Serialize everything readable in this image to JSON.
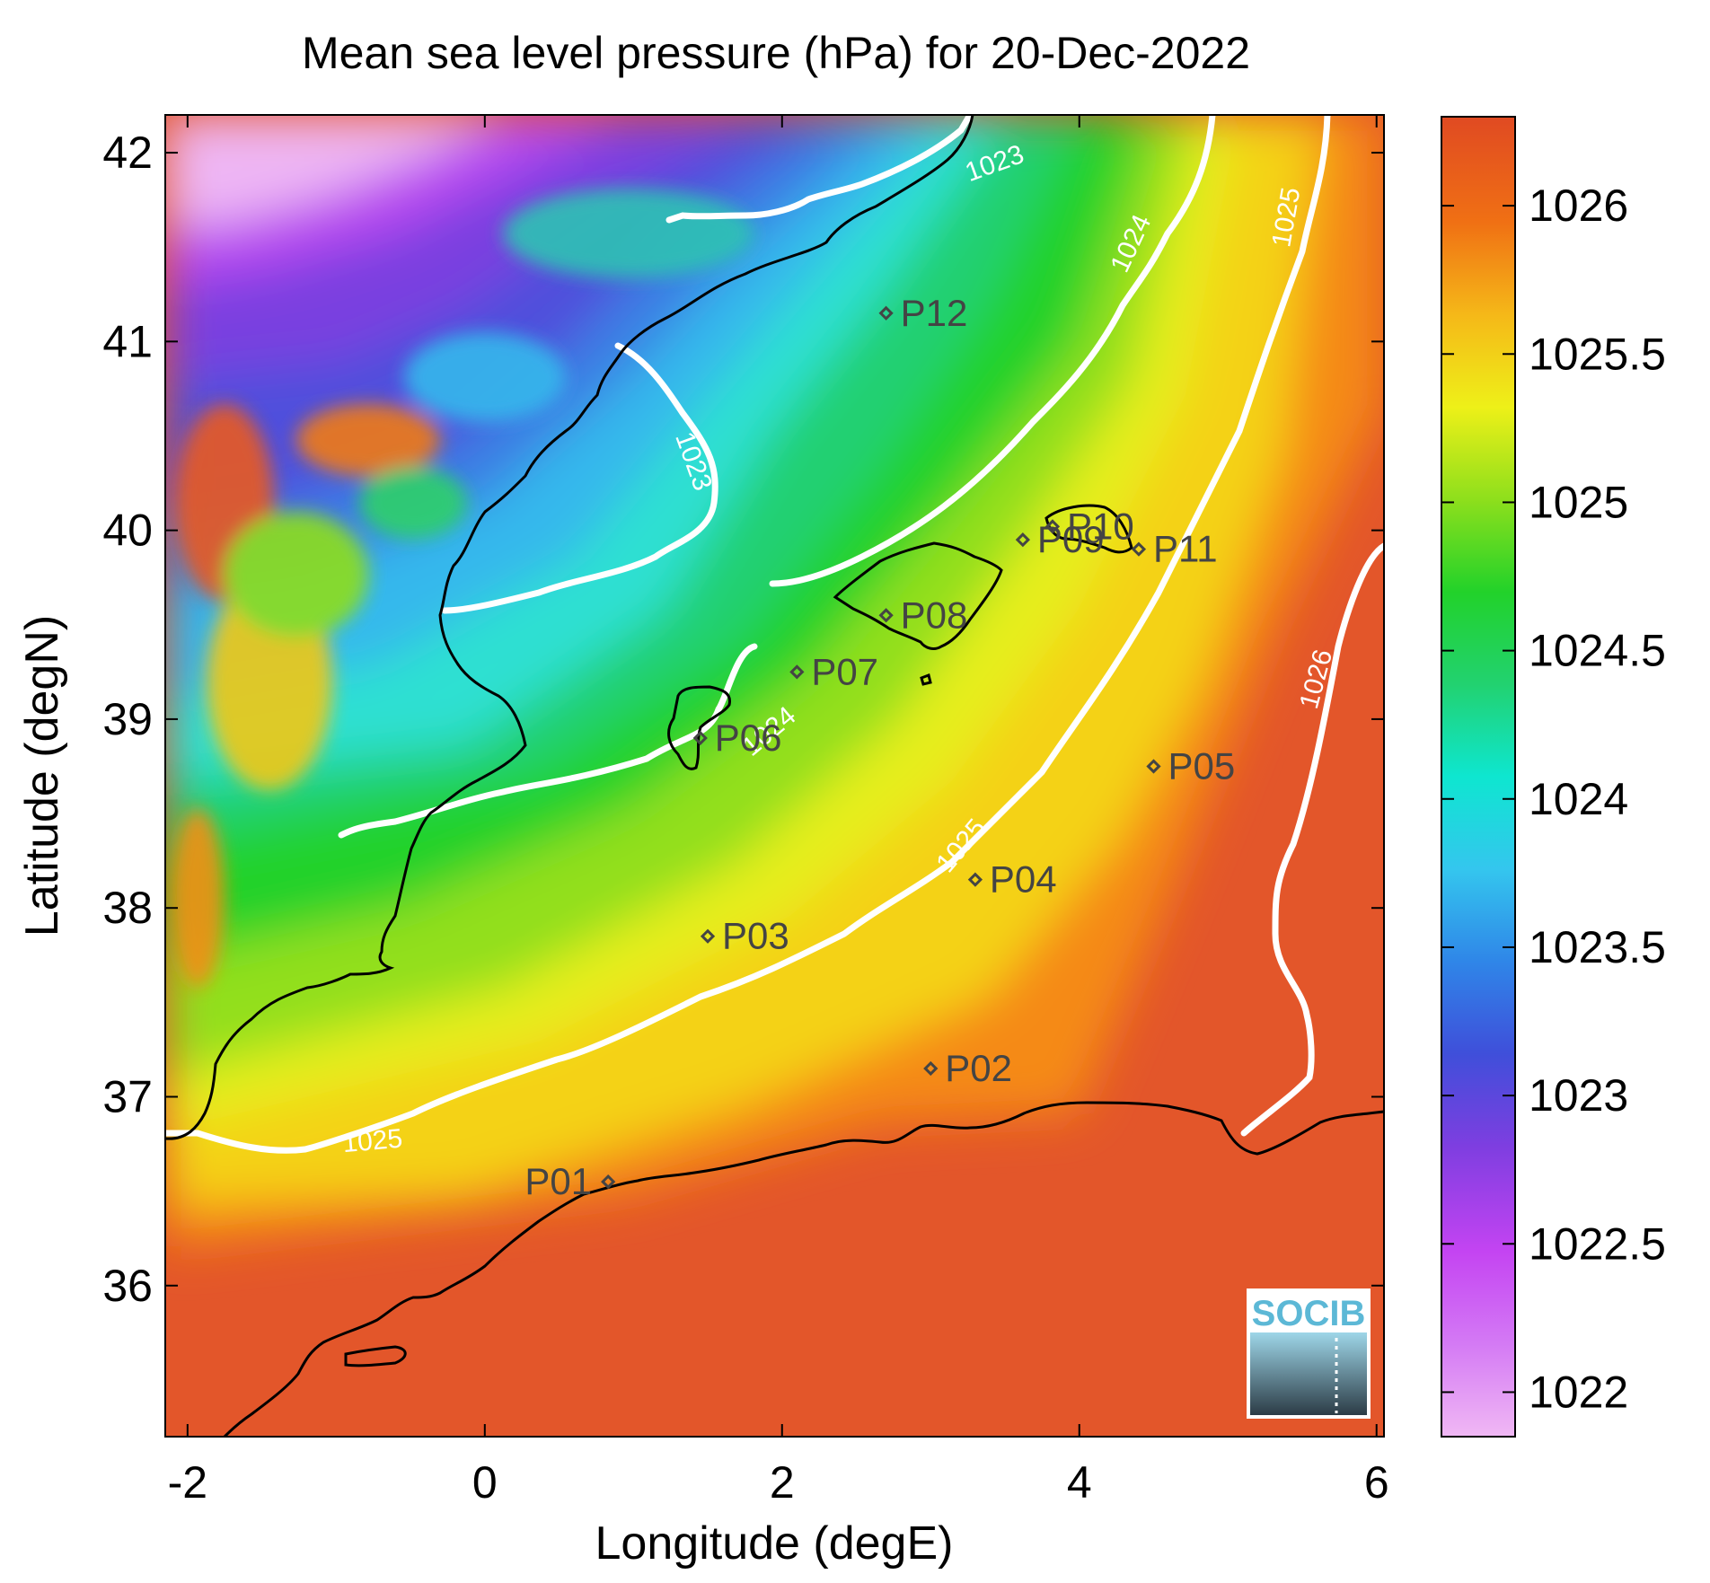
{
  "title": "Mean sea level pressure (hPa) for 20-Dec-2022",
  "x_axis": {
    "label": "Longitude (degE)",
    "range": [
      -2.15,
      6.05
    ],
    "ticks": [
      -2,
      0,
      2,
      4,
      6
    ],
    "tick_labels": [
      "-2",
      "0",
      "2",
      "4",
      "6"
    ]
  },
  "y_axis": {
    "label": "Latitude (degN)",
    "range": [
      35.2,
      42.2
    ],
    "ticks": [
      36,
      37,
      38,
      39,
      40,
      41,
      42
    ],
    "tick_labels": [
      "36",
      "37",
      "38",
      "39",
      "40",
      "41",
      "42"
    ]
  },
  "colorbar": {
    "range": [
      1021.85,
      1026.3
    ],
    "ticks": [
      1022,
      1022.5,
      1023,
      1023.5,
      1024,
      1024.5,
      1025,
      1025.5,
      1026
    ],
    "tick_labels": [
      "1022",
      "1022.5",
      "1023",
      "1023.5",
      "1024",
      "1024.5",
      "1025",
      "1025.5",
      "1026"
    ],
    "colormap": [
      "#f0b8f4",
      "#c444f2",
      "#7e3ee0",
      "#3a5fd6",
      "#34b4ee",
      "#0ee6d0",
      "#22d270",
      "#22d22a",
      "#8edf1c",
      "#eef018",
      "#f8d818",
      "#f5a418",
      "#f05e14",
      "#e04a22"
    ]
  },
  "contour_labels": [
    {
      "text": "1023",
      "lon": 3.45,
      "lat": 41.9
    },
    {
      "text": "1023",
      "lon": 1.35,
      "lat": 40.35
    },
    {
      "text": "1024",
      "lon": 4.4,
      "lat": 41.5
    },
    {
      "text": "1025",
      "lon": 5.45,
      "lat": 41.65
    },
    {
      "text": "1024",
      "lon": 1.95,
      "lat": 38.9
    },
    {
      "text": "1025",
      "lon": 3.25,
      "lat": 38.3
    },
    {
      "text": "1025",
      "lon": -0.75,
      "lat": 36.72
    },
    {
      "text": "1026",
      "lon": 5.65,
      "lat": 39.2
    }
  ],
  "stations": [
    {
      "id": "P01",
      "lon": 0.83,
      "lat": 36.55
    },
    {
      "id": "P02",
      "lon": 3.0,
      "lat": 37.15
    },
    {
      "id": "P03",
      "lon": 1.5,
      "lat": 37.85
    },
    {
      "id": "P04",
      "lon": 3.3,
      "lat": 38.15
    },
    {
      "id": "P05",
      "lon": 4.5,
      "lat": 38.75
    },
    {
      "id": "P06",
      "lon": 1.45,
      "lat": 38.9
    },
    {
      "id": "P07",
      "lon": 2.1,
      "lat": 39.25
    },
    {
      "id": "P08",
      "lon": 2.7,
      "lat": 39.55
    },
    {
      "id": "P09",
      "lon": 3.62,
      "lat": 39.95
    },
    {
      "id": "P10",
      "lon": 3.82,
      "lat": 40.02
    },
    {
      "id": "P11",
      "lon": 4.4,
      "lat": 39.9
    },
    {
      "id": "P12",
      "lon": 2.7,
      "lat": 41.15
    }
  ],
  "logo_text": "SOCIB"
}
